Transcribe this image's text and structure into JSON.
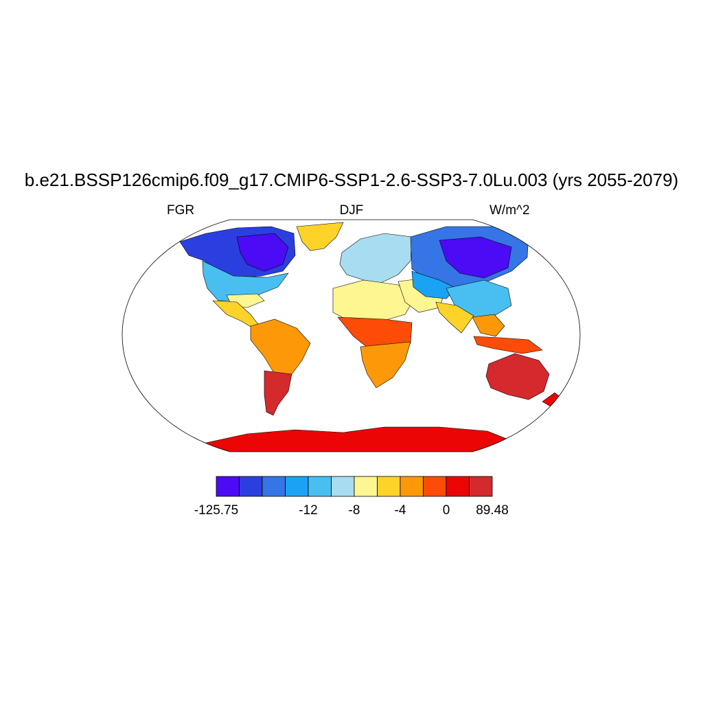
{
  "title": "b.e21.BSSP126cmip6.f09_g17.CMIP6-SSP1-2.6-SSP3-7.0Lu.003 (yrs 2055-2079)",
  "left_label": "FGR",
  "center_label": "DJF",
  "right_label": "W/m^2",
  "colorbar": {
    "colors": [
      "#4b0bf5",
      "#2b3fe0",
      "#3575e6",
      "#1aa2f5",
      "#48bff0",
      "#a8dcf0",
      "#fef690",
      "#fdd32a",
      "#fd9808",
      "#fd4b08",
      "#ec0505",
      "#d4292d"
    ],
    "labels": [
      {
        "text": "-125.75",
        "boundary": 0
      },
      {
        "text": "-12",
        "boundary": 2
      },
      {
        "text": "-8",
        "boundary": 3
      },
      {
        "text": "-4",
        "boundary": 4
      },
      {
        "text": "0",
        "boundary": 5
      },
      {
        "text": "89.48",
        "boundary": 6
      }
    ]
  },
  "map": {
    "projection": "robinson",
    "regions": [
      {
        "name": "greenland",
        "color": "#fdd32a"
      },
      {
        "name": "canada-north",
        "color": "#2b3fe0"
      },
      {
        "name": "hudson-core",
        "color": "#4b0bf5"
      },
      {
        "name": "usa",
        "color": "#48bff0"
      },
      {
        "name": "southeast-us",
        "color": "#fef690"
      },
      {
        "name": "mexico-central-america",
        "color": "#fdd32a"
      },
      {
        "name": "south-america-north",
        "color": "#fd9808"
      },
      {
        "name": "south-america-south",
        "color": "#d4292d"
      },
      {
        "name": "europe",
        "color": "#a8dcf0"
      },
      {
        "name": "north-africa",
        "color": "#fef690"
      },
      {
        "name": "central-africa",
        "color": "#fd4b08"
      },
      {
        "name": "southern-africa",
        "color": "#fd9808"
      },
      {
        "name": "middle-east",
        "color": "#fef690"
      },
      {
        "name": "russia",
        "color": "#3575e6"
      },
      {
        "name": "siberia-core",
        "color": "#4b0bf5"
      },
      {
        "name": "central-asia",
        "color": "#1aa2f5"
      },
      {
        "name": "china",
        "color": "#48bff0"
      },
      {
        "name": "india",
        "color": "#fdd32a"
      },
      {
        "name": "southeast-asia",
        "color": "#fd9808"
      },
      {
        "name": "indonesia",
        "color": "#fd4b08"
      },
      {
        "name": "australia",
        "color": "#d4292d"
      },
      {
        "name": "new-zealand",
        "color": "#ec0505"
      },
      {
        "name": "antarctica",
        "color": "#ec0505"
      }
    ]
  }
}
